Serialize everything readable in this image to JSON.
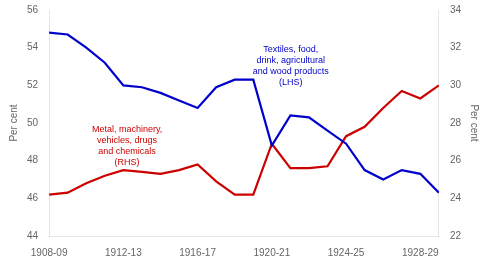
{
  "chart_data": {
    "type": "line",
    "x": [
      1908,
      1909,
      1910,
      1911,
      1912,
      1913,
      1914,
      1915,
      1916,
      1917,
      1918,
      1919,
      1920,
      1921,
      1922,
      1923,
      1924,
      1925,
      1926,
      1927,
      1928,
      1929
    ],
    "xlim": [
      1908,
      1929
    ],
    "xticks": [
      {
        "value": 1908,
        "label": "1908-09"
      },
      {
        "value": 1912,
        "label": "1912-13"
      },
      {
        "value": 1916,
        "label": "1916-17"
      },
      {
        "value": 1920,
        "label": "1920-21"
      },
      {
        "value": 1924,
        "label": "1924-25"
      },
      {
        "value": 1928,
        "label": "1928-29"
      }
    ],
    "ylim": [
      44,
      56
    ],
    "yticks": [
      44,
      46,
      48,
      50,
      52,
      54,
      56
    ],
    "y2lim": [
      22,
      34
    ],
    "y2ticks": [
      22,
      24,
      26,
      28,
      30,
      32,
      34
    ],
    "y_label": "Per cent",
    "y2_label": "Per cent",
    "grid": false,
    "series": [
      {
        "color": "#0000CC",
        "values": [
          54.8,
          54.7,
          54.0,
          53.2,
          52.0,
          51.9,
          51.6,
          51.2,
          50.8,
          51.9,
          52.3,
          52.3,
          48.8,
          50.4,
          50.3,
          49.6,
          48.9,
          47.5,
          47.0,
          47.5,
          47.3,
          46.3
        ]
      },
      {
        "color": "#CC0000",
        "axis": "y2",
        "values": [
          24.2,
          24.3,
          24.8,
          25.2,
          25.5,
          25.4,
          25.3,
          25.5,
          25.8,
          24.9,
          24.2,
          24.2,
          26.9,
          25.6,
          25.6,
          25.7,
          27.3,
          27.8,
          28.8,
          29.7,
          29.3,
          30.0
        ]
      }
    ],
    "annotations": [
      {
        "text": "Textiles, food,\ndrink, agricultural\nand wood products\n(LHS)",
        "color": "#0000CC"
      },
      {
        "text": "Metal, machinery,\nvehicles, drugs\nand chemicals\n(RHS)",
        "color": "#CC0000"
      }
    ]
  }
}
